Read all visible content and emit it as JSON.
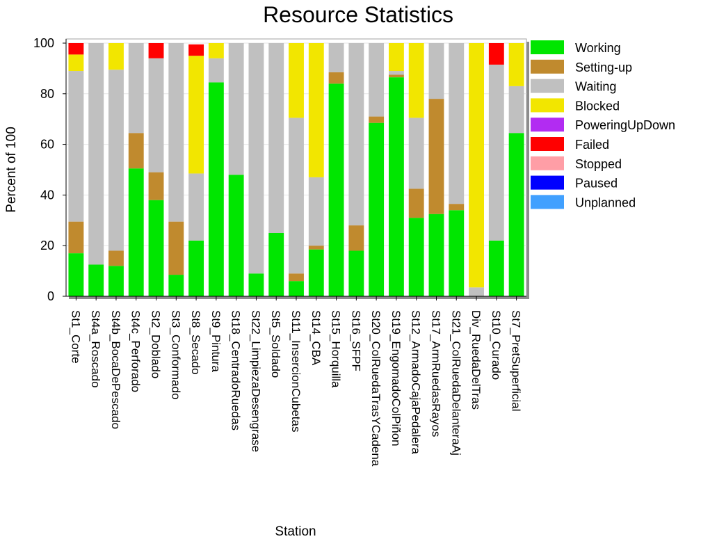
{
  "chart_data": {
    "type": "bar",
    "stacked": true,
    "title": "Resource Statistics",
    "xlabel": "Station",
    "ylabel": "Percent of 100",
    "ylim": [
      0,
      100
    ],
    "yticks": [
      0,
      20,
      40,
      60,
      80,
      100
    ],
    "grid": true,
    "legend_position": "right",
    "categories": [
      "St1_Corte",
      "St4a_Roscado",
      "St4b_BocaDePescado",
      "St4c_Perforado",
      "St2_Doblado",
      "St3_Conformado",
      "St8_Secado",
      "St9_Pintura",
      "St18_CentradoRuedas",
      "St22_LimpiezaDesengrase",
      "St5_Soldado",
      "St11_InsercionCubetas",
      "St14_CBA",
      "St15_Horquilla",
      "St16_SFPF",
      "St20_ColRuedaTrasYCadena",
      "St19_EngomadoColPiñon",
      "St12_ArmadoCajaPedalera",
      "St17_ArmRuedasRayos",
      "St21_ColRuedaDelanteraAj",
      "Div_RuedaDelTras",
      "St10_Curado",
      "St7_PretSuperficial"
    ],
    "series": [
      {
        "name": "Working",
        "color": "#00e600",
        "values": [
          17,
          12.5,
          12,
          50.5,
          38,
          8.5,
          22,
          84.5,
          48,
          9,
          25,
          6,
          18.5,
          84,
          18,
          68.5,
          86.5,
          31,
          32.5,
          34,
          0,
          22,
          64.5
        ]
      },
      {
        "name": "Setting-up",
        "color": "#c08a2e",
        "values": [
          12.5,
          0,
          6,
          14,
          11,
          21,
          0,
          0,
          0,
          0,
          0,
          3,
          1.5,
          4.5,
          10,
          2.5,
          1,
          11.5,
          45.5,
          2.5,
          0,
          0,
          0
        ]
      },
      {
        "name": "Waiting",
        "color": "#c0c0c0",
        "values": [
          59.5,
          87.5,
          71.5,
          35.5,
          45,
          70.5,
          26.5,
          9.5,
          52,
          91,
          75,
          61.5,
          27,
          11.5,
          72,
          29,
          1.5,
          28,
          22,
          63.5,
          3.5,
          69.5,
          18.5
        ]
      },
      {
        "name": "Blocked",
        "color": "#f2e600",
        "values": [
          6.5,
          0,
          10.5,
          0,
          0,
          0,
          46.5,
          6,
          0,
          0,
          0,
          29.5,
          53,
          0,
          0,
          0,
          11,
          29.5,
          0,
          0,
          96.5,
          0,
          17
        ]
      },
      {
        "name": "PoweringUpDown",
        "color": "#b22cf2",
        "values": [
          0,
          0,
          0,
          0,
          0,
          0,
          0,
          0,
          0,
          0,
          0,
          0,
          0,
          0,
          0,
          0,
          0,
          0,
          0,
          0,
          0,
          0,
          0
        ]
      },
      {
        "name": "Failed",
        "color": "#ff0000",
        "values": [
          4.5,
          0,
          0,
          0,
          6,
          0,
          4.5,
          0,
          0,
          0,
          0,
          0,
          0,
          0,
          0,
          0,
          0,
          0,
          0,
          0,
          0,
          8.5,
          0
        ]
      },
      {
        "name": "Stopped",
        "color": "#ff9ea6",
        "values": [
          0,
          0,
          0,
          0,
          0,
          0,
          0,
          0,
          0,
          0,
          0,
          0,
          0,
          0,
          0,
          0,
          0,
          0,
          0,
          0,
          0,
          0,
          0
        ]
      },
      {
        "name": "Paused",
        "color": "#0000ff",
        "values": [
          0,
          0,
          0,
          0,
          0,
          0,
          0,
          0,
          0,
          0,
          0,
          0,
          0,
          0,
          0,
          0,
          0,
          0,
          0,
          0,
          0,
          0,
          0
        ]
      },
      {
        "name": "Unplanned",
        "color": "#41a0ff",
        "values": [
          0,
          0,
          0,
          0,
          0,
          0,
          0,
          0,
          0,
          0,
          0,
          0,
          0,
          0,
          0,
          0,
          0,
          0,
          0,
          0,
          0,
          0,
          0
        ]
      }
    ]
  }
}
